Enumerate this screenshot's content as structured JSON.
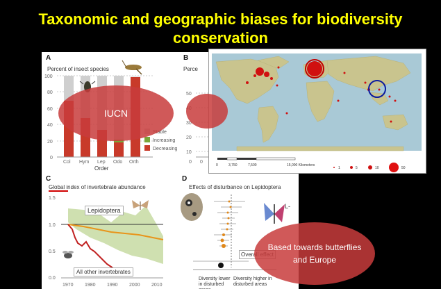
{
  "slide": {
    "title_line1": "Taxonomic and geographic biases for biodiversity",
    "title_line2": "conservation"
  },
  "panel_a": {
    "label": "A",
    "subtitle": "Percent of insect species",
    "yticks": [
      "100",
      "80",
      "60",
      "40",
      "20",
      "0"
    ],
    "categories": [
      "Col",
      "Hym",
      "Lep",
      "Odo",
      "Orth"
    ],
    "xlabel": "Order",
    "legend": [
      "Stable",
      "Increasing",
      "Decreasing"
    ],
    "colors": {
      "stable": "#cfcfcf",
      "increasing": "#7aa63a",
      "decreasing": "#c83a2a"
    }
  },
  "panel_b": {
    "label": "B",
    "subtitle": "Perce",
    "yticks": [
      "50",
      "40",
      "30",
      "20",
      "10",
      "0"
    ],
    "xtick0": "0"
  },
  "map": {
    "scale_ticks": [
      "0",
      "3,750",
      "7,500",
      "15,000 Kilometers"
    ],
    "legend_values": [
      "1",
      "5",
      "10",
      "50"
    ]
  },
  "panel_c": {
    "label": "C",
    "subtitle": "Global index of invertebrate abundance",
    "yticks": [
      "1.5",
      "1.0",
      "0.5",
      "0.0"
    ],
    "xticks": [
      "1970",
      "1980",
      "1990",
      "2000",
      "2010"
    ],
    "lep_label": "Lepidoptera",
    "other_label": "All other invertebrates"
  },
  "panel_d": {
    "label": "D",
    "subtitle": "Effects of disturbance on Lepidoptera",
    "overall_label": "Overall effect",
    "lower_label": "Diversity lower in disturbed areas",
    "higher_label": "Diversity higher in disturbed areas",
    "side_letter": "L-"
  },
  "callouts": {
    "iucn": "IUCN",
    "butterflies_line1": "Based towards butterflies",
    "butterflies_line2": "and Europe"
  }
}
